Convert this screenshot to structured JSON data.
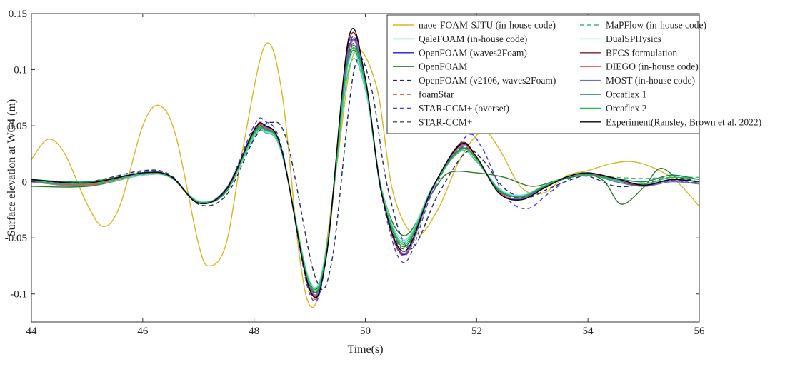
{
  "chart_data": {
    "type": "line",
    "title": "",
    "xlabel": "Time(s)",
    "ylabel": "Surface elevation at WG4 (m)",
    "xlim": [
      44,
      56
    ],
    "ylim": [
      -0.125,
      0.15
    ],
    "xticks": [
      44,
      46,
      48,
      50,
      52,
      54,
      56
    ],
    "xtick_labels": [
      "44",
      "46",
      "48",
      "50",
      "52",
      "54",
      "56"
    ],
    "yticks": [
      -0.1,
      -0.05,
      0,
      0.05,
      0.1,
      0.15
    ],
    "ytick_labels": [
      "-0.1",
      "-0.05",
      "0",
      "0.05",
      "0.1",
      "0.15"
    ],
    "grid": false,
    "legend_position": "top-right",
    "series": [
      {
        "name": "naoe-FOAM-SJTU (in-house code)",
        "color": "#d9b626",
        "dash": "solid",
        "x": [
          44,
          44.3,
          44.6,
          45,
          45.3,
          45.6,
          46,
          46.3,
          46.6,
          47,
          47.2,
          47.5,
          47.8,
          48.2,
          48.5,
          48.8,
          49,
          49.2,
          49.5,
          49.8,
          50.2,
          50.5,
          50.9,
          51.3,
          51.7,
          52.1,
          52.4,
          52.8,
          53.2,
          53.6,
          54,
          54.4,
          54.8,
          55.2,
          55.6,
          56
        ],
        "y": [
          0.02,
          0.038,
          0.025,
          -0.02,
          -0.04,
          -0.02,
          0.05,
          0.068,
          0.04,
          -0.055,
          -0.075,
          -0.055,
          0.03,
          0.122,
          0.08,
          -0.06,
          -0.11,
          -0.09,
          0.02,
          0.115,
          0.085,
          -0.01,
          -0.048,
          -0.025,
          0.02,
          0.045,
          0.03,
          -0.005,
          -0.01,
          0.005,
          0.01,
          0.016,
          0.018,
          0.012,
          0.0,
          -0.022
        ]
      },
      {
        "name": "QaleFOAM (in-house code)",
        "color": "#3cc6a0",
        "dash": "solid",
        "x": [
          44,
          45,
          46,
          46.5,
          47,
          47.5,
          48,
          48.2,
          48.5,
          49,
          49.3,
          49.7,
          50,
          50.3,
          50.7,
          51.2,
          51.7,
          52,
          52.4,
          52.8,
          53.2,
          53.6,
          54,
          54.5,
          55,
          55.5,
          56
        ],
        "y": [
          0,
          -0.004,
          0.006,
          0.004,
          -0.018,
          -0.008,
          0.04,
          0.044,
          0.025,
          -0.09,
          -0.06,
          0.1,
          0.082,
          -0.01,
          -0.054,
          -0.005,
          0.027,
          0.018,
          -0.006,
          -0.014,
          -0.004,
          0.004,
          0.006,
          0.001,
          -0.004,
          0.002,
          0.0
        ]
      },
      {
        "name": "OpenFOAM (waves2Foam)",
        "color": "#1a1ae6",
        "dash": "solid",
        "x": [
          44,
          45,
          46,
          46.5,
          47,
          47.5,
          48,
          48.2,
          48.5,
          49,
          49.3,
          49.7,
          50,
          50.3,
          50.7,
          51.2,
          51.7,
          52,
          52.4,
          52.8,
          53.2,
          53.6,
          54,
          54.5,
          55,
          55.5,
          56
        ],
        "y": [
          0,
          -0.002,
          0.008,
          0.005,
          -0.019,
          -0.006,
          0.046,
          0.05,
          0.028,
          -0.095,
          -0.065,
          0.118,
          0.09,
          -0.012,
          -0.065,
          -0.006,
          0.032,
          0.022,
          -0.01,
          -0.015,
          -0.005,
          0.004,
          0.008,
          0.002,
          -0.003,
          0.002,
          0.0
        ]
      },
      {
        "name": "OpenFOAM",
        "color": "#2d7a24",
        "dash": "solid",
        "x": [
          44,
          45,
          46,
          46.5,
          47,
          47.5,
          48,
          48.2,
          48.5,
          49,
          49.3,
          49.7,
          50,
          50.3,
          50.7,
          51.2,
          51.5,
          52,
          52.5,
          53,
          53.5,
          54,
          54.3,
          54.6,
          55,
          55.3,
          55.7,
          56
        ],
        "y": [
          -0.004,
          -0.004,
          0.006,
          0.004,
          -0.018,
          -0.009,
          0.042,
          0.046,
          0.027,
          -0.09,
          -0.06,
          0.108,
          0.085,
          -0.008,
          -0.048,
          -0.01,
          0.008,
          0.008,
          0.004,
          -0.004,
          0.002,
          0.006,
          0.0,
          -0.02,
          -0.005,
          0.012,
          0.0,
          0.0
        ]
      },
      {
        "name": "OpenFOAM (v2106, waves2Foam)",
        "color": "#1c2c5c",
        "dash": "6,4",
        "x": [
          44,
          45,
          46,
          46.5,
          47,
          47.5,
          48,
          48.3,
          48.6,
          49.1,
          49.4,
          49.8,
          50.1,
          50.4,
          50.8,
          51.3,
          51.8,
          52.1,
          52.5,
          52.9,
          53.3,
          53.7,
          54,
          54.5,
          55,
          55.5,
          56
        ],
        "y": [
          0.001,
          0.0,
          0.01,
          0.006,
          -0.02,
          -0.012,
          0.038,
          0.053,
          0.035,
          -0.085,
          -0.07,
          0.1,
          0.085,
          -0.005,
          -0.06,
          -0.012,
          0.026,
          0.02,
          -0.006,
          -0.014,
          -0.006,
          0.002,
          0.005,
          -0.004,
          -0.002,
          0.004,
          0.0
        ]
      },
      {
        "name": "foamStar",
        "color": "#e03030",
        "dash": "6,4",
        "x": [
          44,
          45,
          46,
          46.5,
          47,
          47.5,
          48,
          48.2,
          48.5,
          49,
          49.3,
          49.7,
          50,
          50.3,
          50.7,
          51.2,
          51.7,
          52,
          52.4,
          52.8,
          53.2,
          53.6,
          54,
          54.5,
          55,
          55.5,
          56
        ],
        "y": [
          0,
          -0.003,
          0.007,
          0.004,
          -0.019,
          -0.007,
          0.047,
          0.05,
          0.028,
          -0.098,
          -0.066,
          0.12,
          0.09,
          -0.012,
          -0.066,
          -0.007,
          0.033,
          0.022,
          -0.01,
          -0.015,
          -0.005,
          0.004,
          0.007,
          0.002,
          -0.003,
          0.002,
          0.0
        ]
      },
      {
        "name": "STAR-CCM+ (overset)",
        "color": "#4040f0",
        "dash": "6,4",
        "x": [
          44,
          45,
          46,
          46.5,
          47,
          47.5,
          48,
          48.2,
          48.5,
          49,
          49.3,
          49.7,
          50,
          50.3,
          50.7,
          51.2,
          51.8,
          52.1,
          52.5,
          52.9,
          53.3,
          53.7,
          54,
          54.5,
          55,
          55.5,
          56
        ],
        "y": [
          0,
          -0.002,
          0.009,
          0.006,
          -0.019,
          -0.006,
          0.05,
          0.054,
          0.03,
          -0.1,
          -0.067,
          0.12,
          0.09,
          -0.014,
          -0.072,
          -0.01,
          0.04,
          0.03,
          -0.012,
          -0.024,
          -0.01,
          0.004,
          0.008,
          0.003,
          -0.004,
          0.001,
          -0.002
        ]
      },
      {
        "name": "STAR-CCM+",
        "color": "#505050",
        "dash": "6,4",
        "x": [
          44,
          45,
          46,
          46.5,
          47,
          47.5,
          48,
          48.2,
          48.5,
          49,
          49.3,
          49.7,
          50,
          50.3,
          50.7,
          51.2,
          51.7,
          52,
          52.4,
          52.8,
          53.2,
          53.6,
          54,
          54.5,
          55,
          55.5,
          56
        ],
        "y": [
          0.001,
          -0.002,
          0.008,
          0.005,
          -0.018,
          -0.008,
          0.044,
          0.048,
          0.027,
          -0.093,
          -0.063,
          0.114,
          0.088,
          -0.01,
          -0.06,
          -0.006,
          0.03,
          0.02,
          -0.008,
          -0.014,
          -0.005,
          0.004,
          0.007,
          0.002,
          -0.003,
          0.002,
          0.0
        ]
      },
      {
        "name": "MaPFlow (in-house code)",
        "color": "#3cb878",
        "dash": "6,4",
        "x": [
          44,
          45,
          46,
          46.5,
          47,
          47.5,
          48,
          48.2,
          48.5,
          49,
          49.3,
          49.7,
          50,
          50.3,
          50.7,
          51.2,
          51.7,
          52,
          52.4,
          52.8,
          53.2,
          53.6,
          54,
          54.5,
          55,
          55.5,
          56
        ],
        "y": [
          0,
          -0.003,
          0.006,
          0.004,
          -0.018,
          -0.008,
          0.043,
          0.046,
          0.026,
          -0.09,
          -0.06,
          0.11,
          0.085,
          -0.008,
          -0.056,
          -0.006,
          0.028,
          0.02,
          -0.006,
          -0.012,
          -0.004,
          0.004,
          0.006,
          0.004,
          0.003,
          0.004,
          0.004
        ]
      },
      {
        "name": "DualSPHysics",
        "color": "#7ed6e6",
        "dash": "solid",
        "x": [
          44,
          45,
          46,
          46.5,
          47,
          47.5,
          48,
          48.2,
          48.5,
          49,
          49.3,
          49.7,
          50,
          50.3,
          50.7,
          51.2,
          51.7,
          52,
          52.4,
          52.8,
          53.2,
          53.6,
          54,
          54.5,
          55,
          55.5,
          56
        ],
        "y": [
          0,
          -0.003,
          0.006,
          0.004,
          -0.017,
          -0.008,
          0.041,
          0.045,
          0.026,
          -0.088,
          -0.06,
          0.106,
          0.083,
          -0.008,
          -0.052,
          -0.006,
          0.028,
          0.02,
          -0.006,
          -0.012,
          -0.004,
          0.004,
          0.006,
          0.002,
          -0.002,
          0.002,
          0.0
        ]
      },
      {
        "name": "BFCS formulation",
        "color": "#7a1f1f",
        "dash": "solid",
        "x": [
          44,
          45,
          46,
          46.5,
          47,
          47.5,
          48,
          48.2,
          48.5,
          49,
          49.3,
          49.7,
          50,
          50.3,
          50.7,
          51.2,
          51.7,
          52,
          52.4,
          52.8,
          53.2,
          53.6,
          54,
          54.5,
          55,
          55.5,
          56
        ],
        "y": [
          0,
          -0.002,
          0.007,
          0.005,
          -0.019,
          -0.007,
          0.046,
          0.049,
          0.028,
          -0.096,
          -0.065,
          0.124,
          0.092,
          -0.012,
          -0.064,
          -0.007,
          0.034,
          0.022,
          -0.01,
          -0.016,
          -0.006,
          0.004,
          0.007,
          0.002,
          -0.004,
          0.002,
          0.0
        ]
      },
      {
        "name": "DIEGO (in-house code)",
        "color": "#f05050",
        "dash": "solid",
        "x": [
          44,
          45,
          46,
          46.5,
          47,
          47.5,
          48,
          48.2,
          48.5,
          49,
          49.3,
          49.7,
          50,
          50.3,
          50.7,
          51.2,
          51.7,
          52,
          52.4,
          52.8,
          53.2,
          53.6,
          54,
          54.5,
          55,
          55.5,
          56
        ],
        "y": [
          0,
          -0.003,
          0.007,
          0.004,
          -0.018,
          -0.008,
          0.045,
          0.048,
          0.027,
          -0.094,
          -0.064,
          0.116,
          0.09,
          -0.011,
          -0.062,
          -0.007,
          0.031,
          0.021,
          -0.009,
          -0.015,
          -0.005,
          0.004,
          0.007,
          0.002,
          -0.003,
          0.002,
          0.0
        ]
      },
      {
        "name": "MOST (in-house code)",
        "color": "#6a6ad8",
        "dash": "solid",
        "x": [
          44,
          45,
          46,
          46.5,
          47,
          47.5,
          48,
          48.2,
          48.5,
          49,
          49.3,
          49.7,
          50,
          50.3,
          50.7,
          51.2,
          51.7,
          52,
          52.4,
          52.8,
          53.2,
          53.6,
          54,
          54.5,
          55,
          55.5,
          56
        ],
        "y": [
          0,
          -0.002,
          0.008,
          0.005,
          -0.019,
          -0.007,
          0.046,
          0.049,
          0.028,
          -0.095,
          -0.064,
          0.117,
          0.09,
          -0.011,
          -0.064,
          -0.007,
          0.032,
          0.022,
          -0.01,
          -0.015,
          -0.005,
          0.004,
          0.007,
          0.0,
          -0.004,
          0.0,
          -0.002
        ]
      },
      {
        "name": "Orcaflex 1",
        "color": "#1f7a5a",
        "dash": "solid",
        "x": [
          44,
          45,
          46,
          46.5,
          47,
          47.5,
          48,
          48.2,
          48.5,
          49,
          49.3,
          49.7,
          50,
          50.3,
          50.7,
          51.2,
          51.7,
          52,
          52.4,
          52.8,
          53.2,
          53.6,
          54,
          54.5,
          55,
          55.5,
          56
        ],
        "y": [
          0.002,
          0.0,
          0.008,
          0.005,
          -0.018,
          -0.007,
          0.044,
          0.047,
          0.027,
          -0.092,
          -0.063,
          0.112,
          0.088,
          -0.01,
          -0.058,
          -0.006,
          0.029,
          0.02,
          -0.008,
          -0.013,
          -0.005,
          0.003,
          0.006,
          0.003,
          0.0,
          0.006,
          0.002
        ]
      },
      {
        "name": "Orcaflex 2",
        "color": "#22c04a",
        "dash": "solid",
        "x": [
          44,
          45,
          46,
          46.5,
          47,
          47.5,
          48,
          48.2,
          48.5,
          49,
          49.3,
          49.7,
          50,
          50.3,
          50.7,
          51.2,
          51.7,
          52,
          52.4,
          52.8,
          53.2,
          53.6,
          54,
          54.5,
          55,
          55.5,
          56
        ],
        "y": [
          0.001,
          -0.002,
          0.007,
          0.004,
          -0.018,
          -0.008,
          0.043,
          0.046,
          0.027,
          -0.091,
          -0.062,
          0.11,
          0.087,
          -0.01,
          -0.056,
          -0.006,
          0.028,
          0.02,
          -0.007,
          -0.013,
          -0.004,
          0.004,
          0.006,
          0.002,
          -0.002,
          0.004,
          0.002
        ]
      },
      {
        "name": "Experiment(Ransley, Brown et al. 2022)",
        "color": "#000000",
        "dash": "solid",
        "x": [
          44,
          45,
          46,
          46.5,
          47,
          47.5,
          48,
          48.2,
          48.5,
          49,
          49.3,
          49.7,
          50,
          50.3,
          50.7,
          51.2,
          51.7,
          52,
          52.4,
          52.8,
          53.2,
          53.6,
          54,
          54.5,
          55,
          55.5,
          56
        ],
        "y": [
          0.002,
          -0.001,
          0.008,
          0.005,
          -0.019,
          -0.007,
          0.046,
          0.05,
          0.028,
          -0.096,
          -0.066,
          0.128,
          0.092,
          -0.012,
          -0.062,
          -0.006,
          0.033,
          0.022,
          -0.01,
          -0.016,
          -0.006,
          0.004,
          0.008,
          0.003,
          -0.003,
          0.002,
          0.0
        ]
      }
    ]
  }
}
